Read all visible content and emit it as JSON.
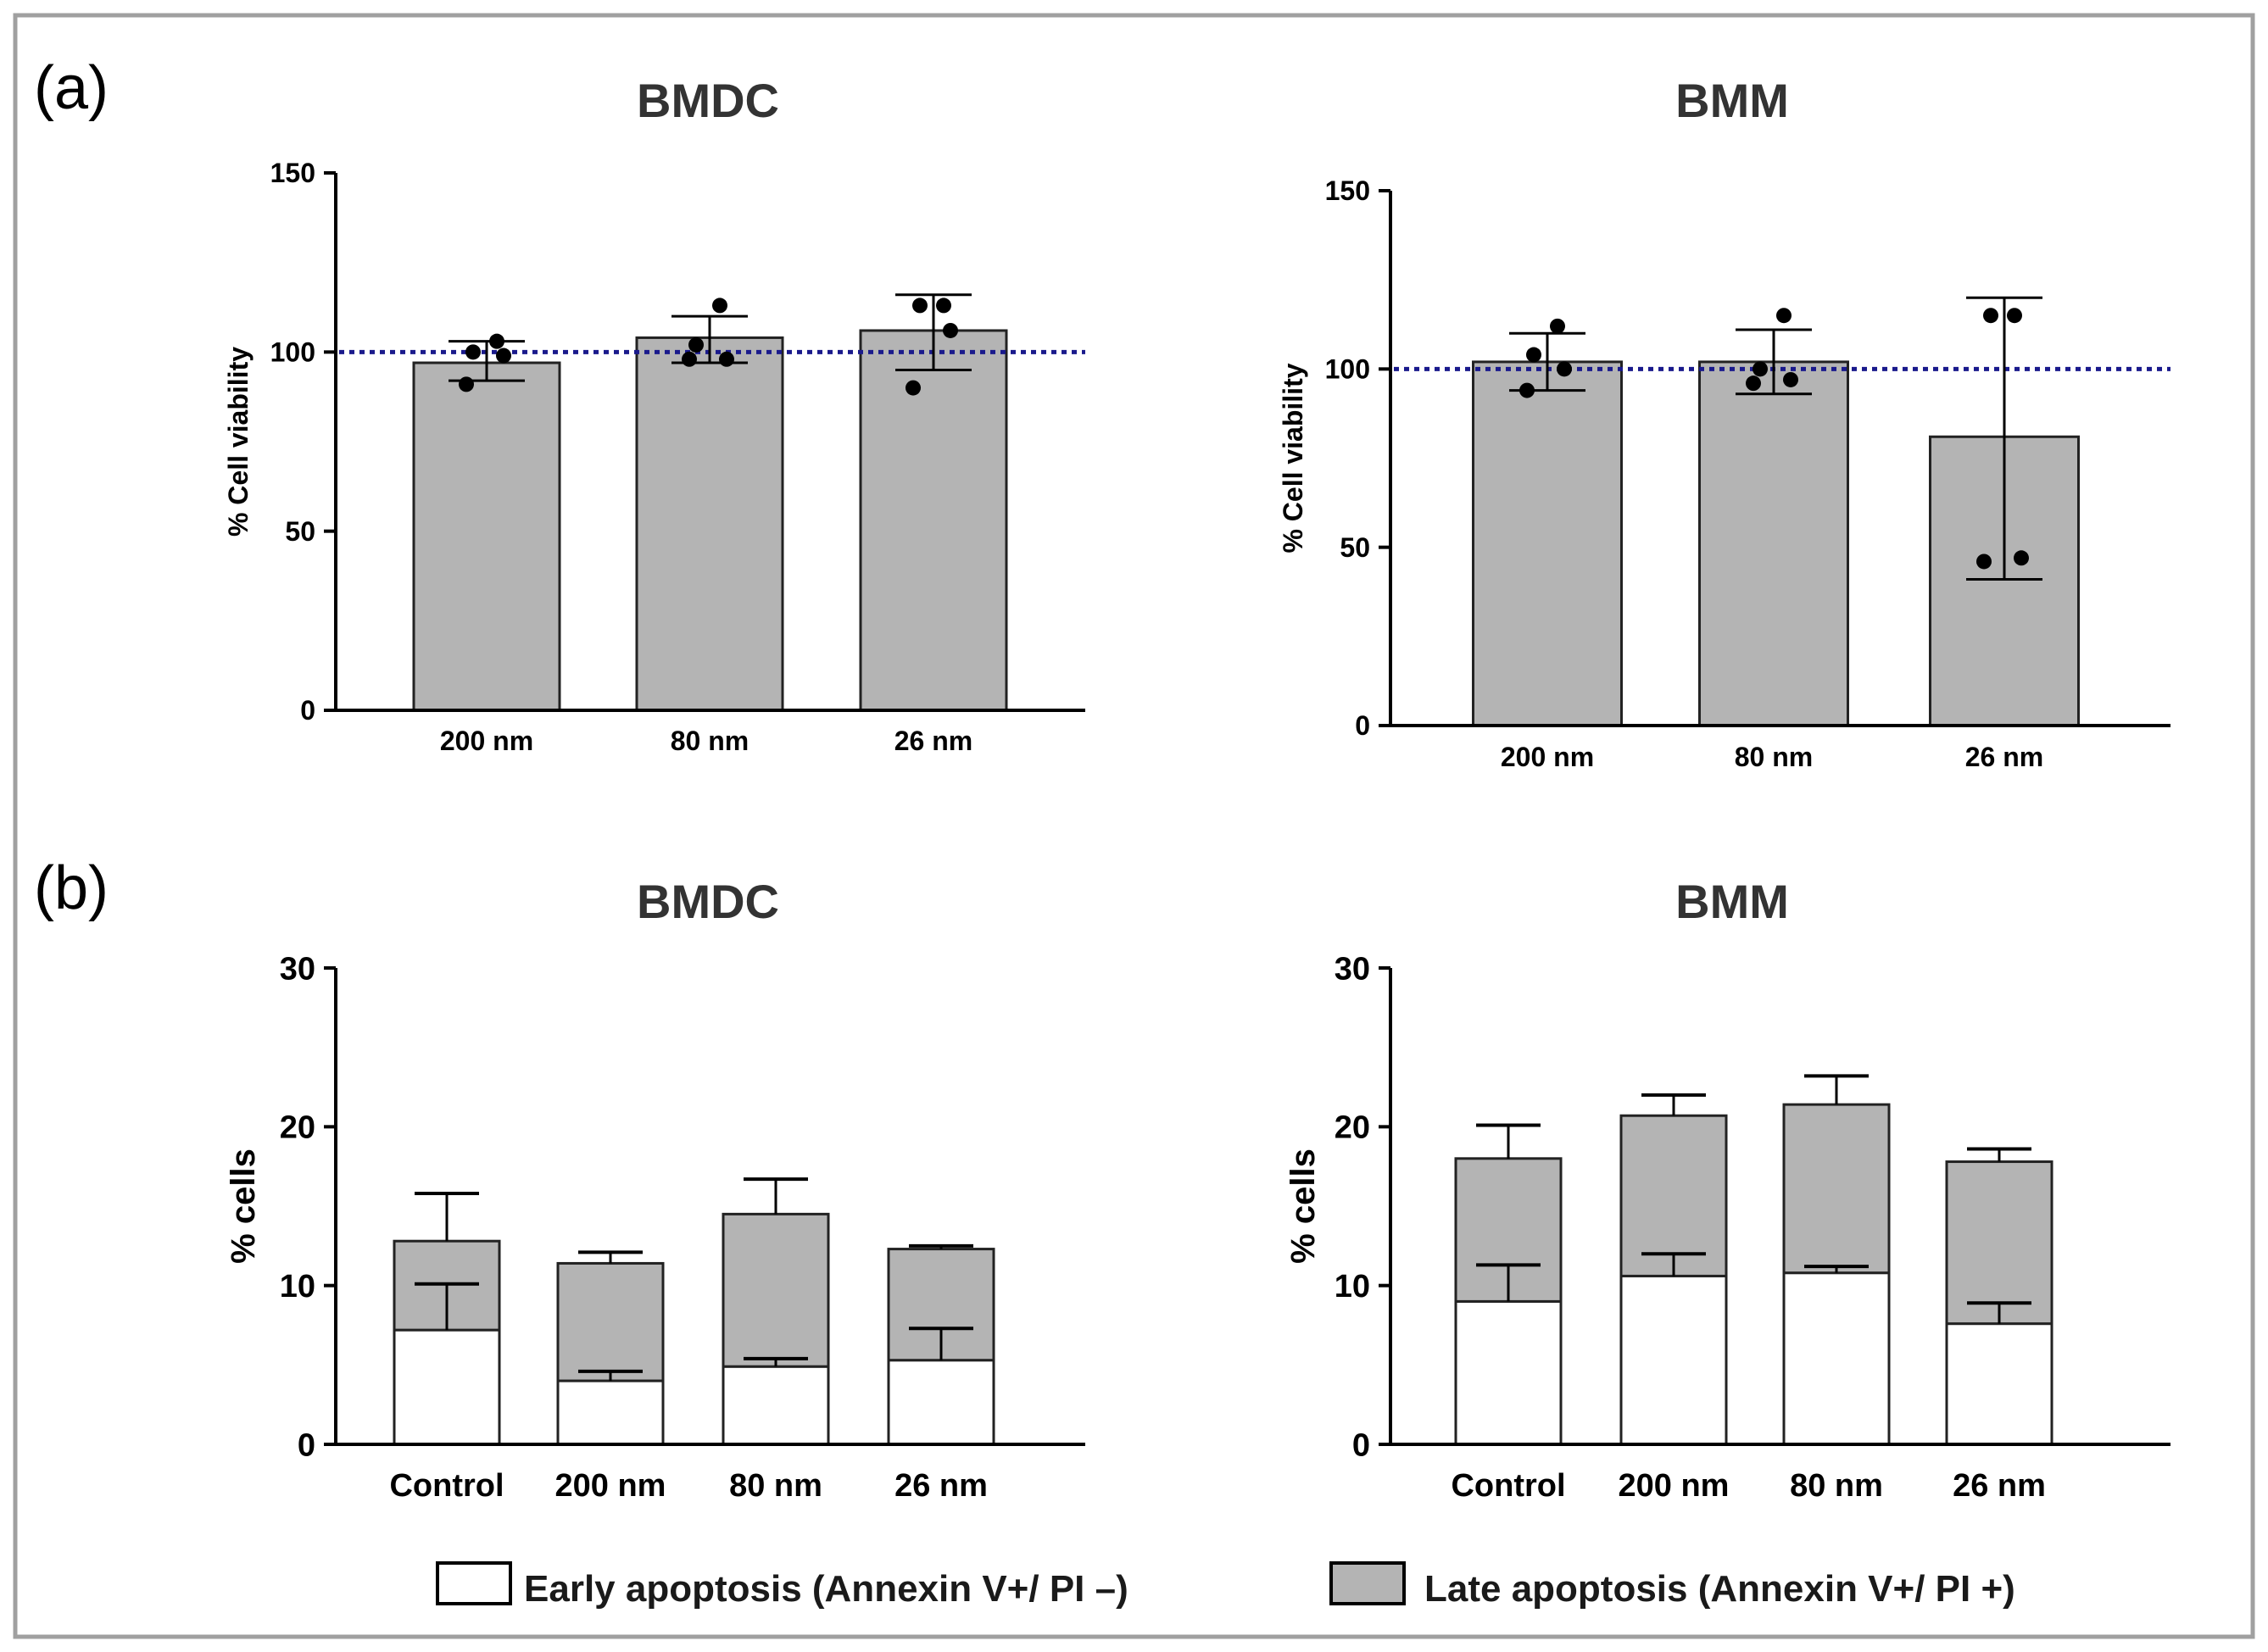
{
  "figure": {
    "panel_a_label": "(a)",
    "panel_b_label": "(b)",
    "legend": {
      "early": {
        "label": "Early apoptosis (Annexin V+/ PI –)",
        "color": "#ffffff"
      },
      "late": {
        "label": "Late apoptosis (Annexin V+/ PI +)",
        "color": "#b4b4b4"
      }
    },
    "colors": {
      "bar_fill": "#b4b4b4",
      "reference_line": "#1a1a8c",
      "border": "#a0a0a0",
      "axis": "#000000"
    }
  },
  "chart_data": [
    {
      "id": "a-bmdc",
      "panel": "a",
      "type": "bar",
      "title": "BMDC",
      "ylabel": "% Cell viability",
      "xlabel": "",
      "categories": [
        "200 nm",
        "80 nm",
        "26 nm"
      ],
      "values": [
        97,
        104,
        106
      ],
      "error": [
        [
          92,
          103
        ],
        [
          97,
          110
        ],
        [
          95,
          116
        ]
      ],
      "points": [
        [
          103,
          100,
          99,
          91
        ],
        [
          113,
          102,
          98,
          98
        ],
        [
          113,
          113,
          106,
          90
        ]
      ],
      "reference_line": 100,
      "ylim": [
        0,
        150
      ],
      "yticks": [
        0,
        50,
        100,
        150
      ],
      "ytick_labels": [
        "0",
        "50",
        "100",
        "150"
      ]
    },
    {
      "id": "a-bmm",
      "panel": "a",
      "type": "bar",
      "title": "BMM",
      "ylabel": "% Cell viability",
      "xlabel": "",
      "categories": [
        "200 nm",
        "80 nm",
        "26 nm"
      ],
      "values": [
        102,
        102,
        81
      ],
      "error": [
        [
          94,
          110
        ],
        [
          93,
          111
        ],
        [
          41,
          120
        ]
      ],
      "points": [
        [
          112,
          104,
          100,
          94
        ],
        [
          115,
          100,
          97,
          96
        ],
        [
          115,
          115,
          47,
          46
        ]
      ],
      "reference_line": 100,
      "ylim": [
        0,
        150
      ],
      "yticks": [
        0,
        50,
        100,
        150
      ],
      "ytick_labels": [
        "0",
        "50",
        "100",
        "150"
      ]
    },
    {
      "id": "b-bmdc",
      "panel": "b",
      "type": "bar",
      "title": "BMDC",
      "ylabel": "% cells",
      "xlabel": "",
      "stacked": true,
      "categories": [
        "Control",
        "200 nm",
        "80 nm",
        "26 nm"
      ],
      "series": [
        {
          "name": "Early apoptosis (Annexin V+/ PI –)",
          "values": [
            7.2,
            4.0,
            4.9,
            5.3
          ],
          "error_upper": [
            10.1,
            4.6,
            5.4,
            7.3
          ]
        },
        {
          "name": "Late apoptosis (Annexin V+/ PI +)",
          "values": [
            5.6,
            7.4,
            9.6,
            7.0
          ],
          "error_upper": [
            15.8,
            12.1,
            16.7,
            12.5
          ]
        }
      ],
      "ylim": [
        0,
        30
      ],
      "yticks": [
        0,
        10,
        20,
        30
      ],
      "ytick_labels": [
        "0",
        "10",
        "20",
        "30"
      ]
    },
    {
      "id": "b-bmm",
      "panel": "b",
      "type": "bar",
      "title": "BMM",
      "ylabel": "% cells",
      "xlabel": "",
      "stacked": true,
      "categories": [
        "Control",
        "200 nm",
        "80 nm",
        "26 nm"
      ],
      "series": [
        {
          "name": "Early apoptosis (Annexin V+/ PI –)",
          "values": [
            9.0,
            10.6,
            10.8,
            7.6
          ],
          "error_upper": [
            11.3,
            12.0,
            11.2,
            8.9
          ]
        },
        {
          "name": "Late apoptosis (Annexin V+/ PI +)",
          "values": [
            9.0,
            10.1,
            10.6,
            10.2
          ],
          "error_upper": [
            20.1,
            22.0,
            23.2,
            18.6
          ]
        }
      ],
      "ylim": [
        0,
        30
      ],
      "yticks": [
        0,
        10,
        20,
        30
      ],
      "ytick_labels": [
        "0",
        "10",
        "20",
        "30"
      ]
    }
  ]
}
